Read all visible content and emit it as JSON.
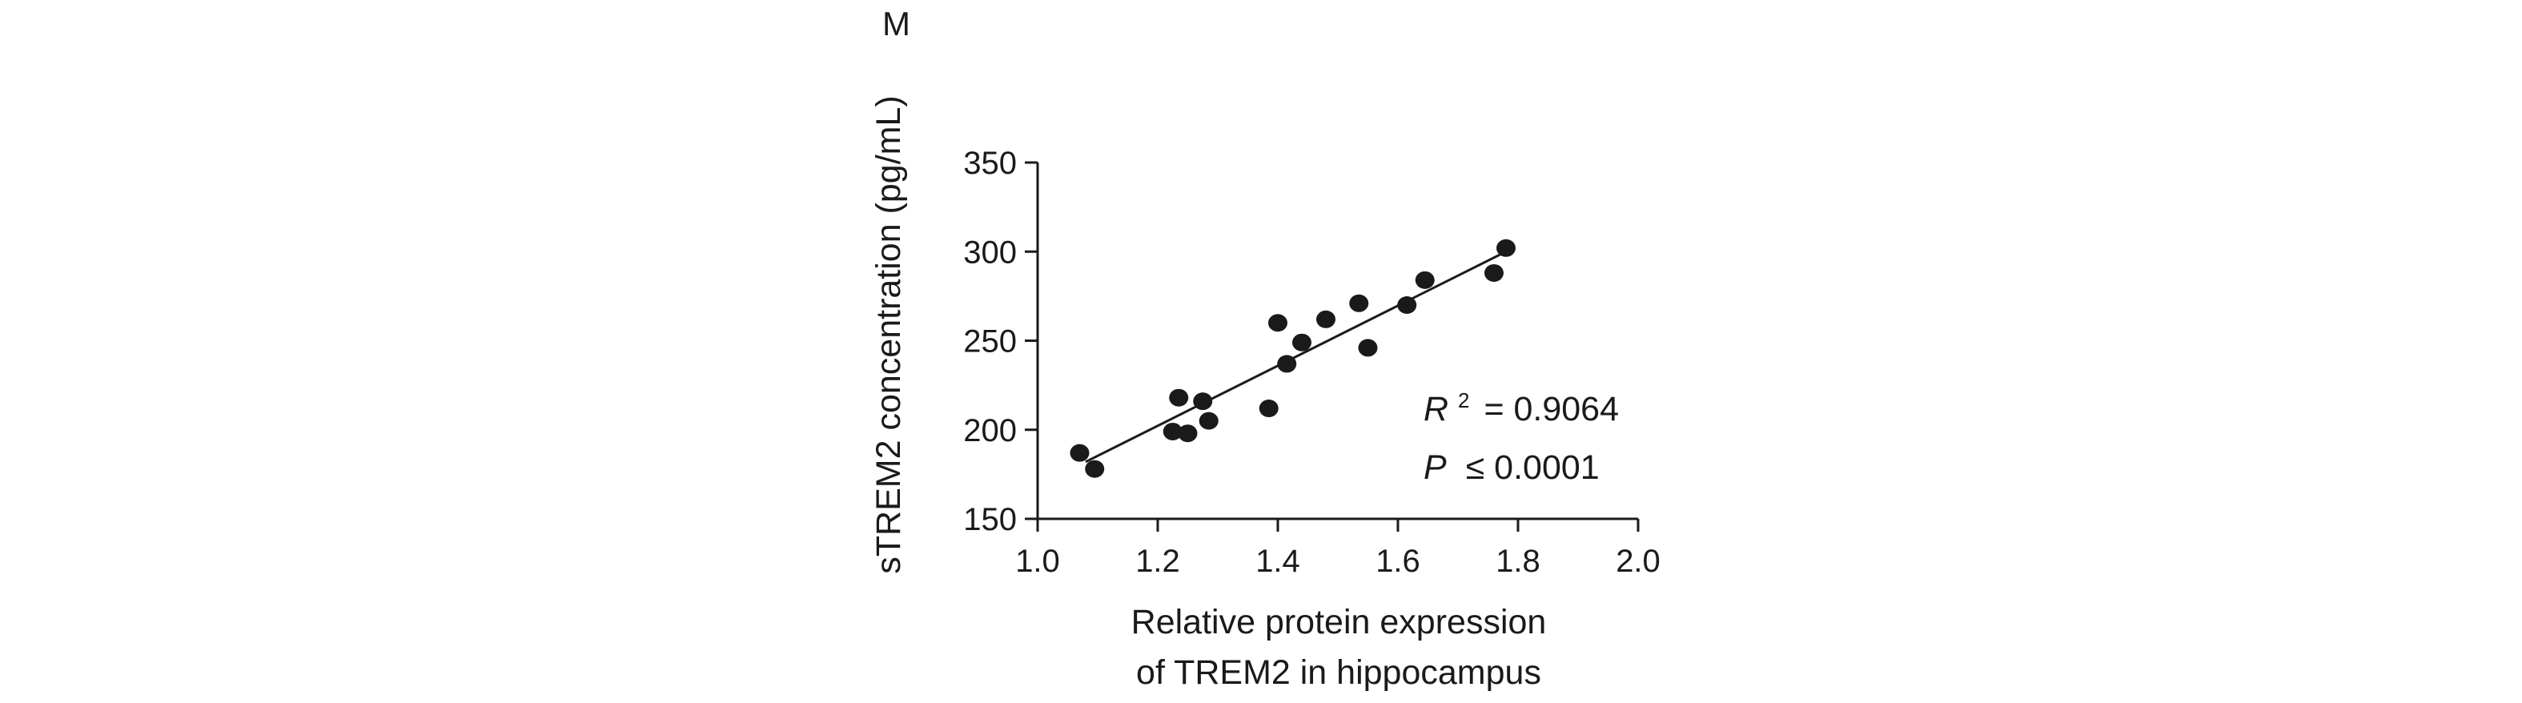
{
  "panel_label": "M",
  "chart_data": {
    "type": "scatter",
    "xlabel_line1": "Relative protein expression",
    "xlabel_line2": "of TREM2 in hippocampus",
    "ylabel": "sTREM2 concentration (pg/mL)",
    "xlim": [
      1.0,
      2.0
    ],
    "ylim": [
      150,
      350
    ],
    "xticks": [
      "1.0",
      "1.2",
      "1.4",
      "1.6",
      "1.8",
      "2.0"
    ],
    "yticks": [
      "150",
      "200",
      "250",
      "300",
      "350"
    ],
    "grid": false,
    "points": [
      {
        "x": 1.07,
        "y": 187
      },
      {
        "x": 1.095,
        "y": 178
      },
      {
        "x": 1.225,
        "y": 199
      },
      {
        "x": 1.235,
        "y": 218
      },
      {
        "x": 1.25,
        "y": 198
      },
      {
        "x": 1.275,
        "y": 216
      },
      {
        "x": 1.285,
        "y": 205
      },
      {
        "x": 1.385,
        "y": 212
      },
      {
        "x": 1.4,
        "y": 260
      },
      {
        "x": 1.415,
        "y": 237
      },
      {
        "x": 1.44,
        "y": 249
      },
      {
        "x": 1.48,
        "y": 262
      },
      {
        "x": 1.535,
        "y": 271
      },
      {
        "x": 1.55,
        "y": 246
      },
      {
        "x": 1.615,
        "y": 270
      },
      {
        "x": 1.645,
        "y": 284
      },
      {
        "x": 1.76,
        "y": 288
      },
      {
        "x": 1.78,
        "y": 302
      }
    ],
    "fit_line": {
      "x": [
        1.08,
        1.78
      ],
      "y": [
        182,
        300
      ]
    },
    "annotation": {
      "r2_symbol": "R",
      "r2_superscript": "2",
      "r2_value": "= 0.9064",
      "p_symbol": "P",
      "p_value": "≤ 0.0001"
    }
  }
}
